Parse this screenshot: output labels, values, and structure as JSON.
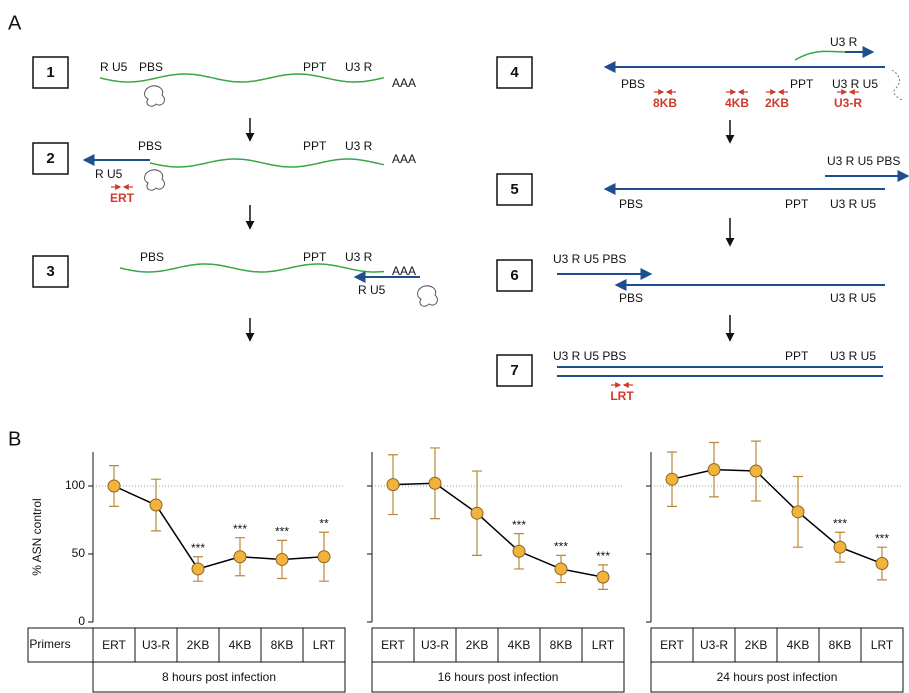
{
  "panel_a": {
    "label": "A",
    "steps": [
      {
        "number": "1",
        "labels": [
          "R U5",
          "PBS",
          "PPT",
          "U3 R",
          "AAA"
        ]
      },
      {
        "number": "2",
        "labels": [
          "PBS",
          "PPT",
          "U3 R",
          "AAA",
          "R U5"
        ],
        "primers": [
          "ERT"
        ]
      },
      {
        "number": "3",
        "labels": [
          "PBS",
          "PPT",
          "U3 R",
          "AAA",
          "R U5"
        ]
      },
      {
        "number": "4",
        "labels": [
          "U3 R",
          "PBS",
          "PPT",
          "U3 R U5"
        ],
        "primers": [
          "8KB",
          "4KB",
          "2KB",
          "U3-R"
        ]
      },
      {
        "number": "5",
        "labels": [
          "U3 R U5 PBS",
          "PBS",
          "PPT",
          "U3 R U5"
        ]
      },
      {
        "number": "6",
        "labels": [
          "U3 R U5 PBS",
          "PBS",
          "U3 R U5"
        ]
      },
      {
        "number": "7",
        "labels": [
          "U3 R U5 PBS",
          "PPT",
          "U3 R U5"
        ],
        "primers": [
          "LRT"
        ]
      }
    ]
  },
  "panel_b": {
    "label": "B",
    "row_label": "Primers"
  },
  "chart_data": [
    {
      "type": "line",
      "xlabel": "8 hours post infection",
      "ylabel": "% ASN control",
      "categories": [
        "ERT",
        "U3-R",
        "2KB",
        "4KB",
        "8KB",
        "LRT"
      ],
      "values": [
        100,
        86,
        39,
        48,
        46,
        48
      ],
      "errors": [
        15,
        19,
        9,
        14,
        14,
        18
      ],
      "significance": [
        null,
        null,
        "***",
        "***",
        "***",
        "**"
      ],
      "ylim": [
        0,
        125
      ],
      "yticks": [
        0,
        50,
        100
      ],
      "tick_labels": true,
      "reference_line": 100,
      "color": "#f2b33d",
      "error_color": "#b8893a",
      "line_color": "#000000"
    },
    {
      "type": "line",
      "xlabel": "16 hours post infection",
      "categories": [
        "ERT",
        "U3-R",
        "2KB",
        "4KB",
        "8KB",
        "LRT"
      ],
      "values": [
        101,
        102,
        80,
        52,
        39,
        33
      ],
      "errors": [
        22,
        26,
        31,
        13,
        10,
        9
      ],
      "significance": [
        null,
        null,
        null,
        "***",
        "***",
        "***"
      ],
      "ylim": [
        0,
        125
      ],
      "yticks": [
        0,
        50,
        100
      ],
      "tick_labels": false,
      "reference_line": 100,
      "color": "#f2b33d",
      "error_color": "#b8893a",
      "line_color": "#000000"
    },
    {
      "type": "line",
      "xlabel": "24 hours post infection",
      "categories": [
        "ERT",
        "U3-R",
        "2KB",
        "4KB",
        "8KB",
        "LRT"
      ],
      "values": [
        105,
        112,
        111,
        81,
        55,
        43
      ],
      "errors": [
        20,
        20,
        22,
        26,
        11,
        12
      ],
      "significance": [
        null,
        null,
        null,
        null,
        "***",
        "***"
      ],
      "ylim": [
        0,
        125
      ],
      "yticks": [
        0,
        50,
        100
      ],
      "tick_labels": false,
      "reference_line": 100,
      "color": "#f2b33d",
      "error_color": "#b8893a",
      "line_color": "#000000"
    }
  ]
}
